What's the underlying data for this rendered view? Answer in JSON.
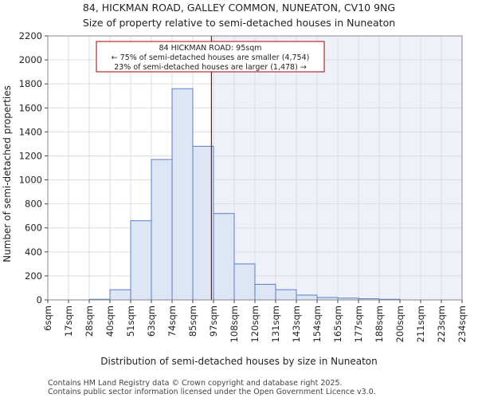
{
  "chart_data": {
    "type": "bar",
    "title": "84, HICKMAN ROAD, GALLEY COMMON, NUNEATON, CV10 9NG",
    "subtitle": "Size of property relative to semi-detached houses in Nuneaton",
    "xlabel": "Distribution of semi-detached houses by size in Nuneaton",
    "ylabel": "Number of semi-detached properties",
    "ylim": [
      0,
      2200
    ],
    "yticks": [
      0,
      200,
      400,
      600,
      800,
      1000,
      1200,
      1400,
      1600,
      1800,
      2000,
      2200
    ],
    "xtick_labels": [
      "6sqm",
      "17sqm",
      "28sqm",
      "40sqm",
      "51sqm",
      "63sqm",
      "74sqm",
      "85sqm",
      "97sqm",
      "108sqm",
      "120sqm",
      "131sqm",
      "143sqm",
      "154sqm",
      "165sqm",
      "177sqm",
      "188sqm",
      "200sqm",
      "211sqm",
      "223sqm",
      "234sqm"
    ],
    "values": [
      0,
      0,
      5,
      85,
      660,
      1170,
      1760,
      1280,
      720,
      300,
      130,
      85,
      40,
      20,
      15,
      10,
      5,
      0,
      0,
      0
    ],
    "marker": {
      "value_index": 7.9,
      "label": "84 HICKMAN ROAD: 95sqm",
      "line2": "← 75% of semi-detached houses are smaller (4,754)",
      "line3": "23% of semi-detached houses are larger (1,478) →"
    },
    "colors": {
      "bar_fill": "#dce6f5",
      "bar_stroke": "#5b7fc4",
      "marker": "#aa0000",
      "shade": "#eef1fa"
    }
  },
  "footer": {
    "line1": "Contains HM Land Registry data © Crown copyright and database right 2025.",
    "line2": "Contains public sector information licensed under the Open Government Licence v3.0."
  }
}
